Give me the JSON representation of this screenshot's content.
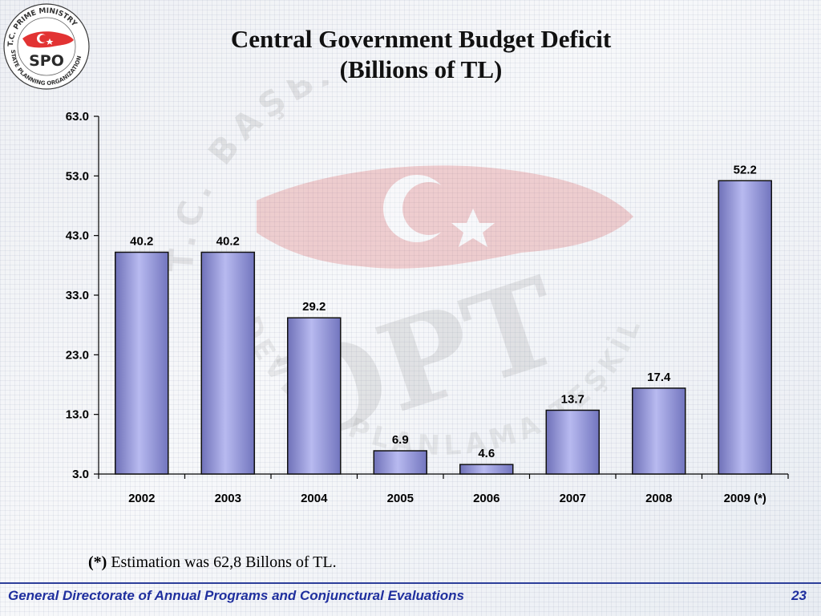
{
  "slide": {
    "title_line1": "Central Government Budget Deficit",
    "title_line2": "(Billions of  TL)",
    "footnote_mark": "(*)",
    "footnote_text": " Estimation was 62,8 Billons of  TL.",
    "footer_text": "General Directorate of Annual Programs and Conjunctural Evaluations",
    "page_number": "23"
  },
  "logo": {
    "arc_top_text": "T.C. PRIME MINISTRY",
    "arc_bottom_text": "STATE PLANNING ORGANIZATION",
    "center_text": "SPO"
  },
  "watermark": {
    "arc_text": "T.C. BAŞBAKANLIK",
    "center_text": "DPT",
    "lower_arc_text": "DEVLET PLANLAMA TEŞKİLATI"
  },
  "colors": {
    "bar_fill": "#a9abe8",
    "bar_stroke": "#111111",
    "footer_text": "#1f2f9e",
    "footer_rule": "#2d3f9a",
    "watermark_red": "#d23a3a"
  },
  "chart_data": {
    "type": "bar",
    "categories": [
      "2002",
      "2003",
      "2004",
      "2005",
      "2006",
      "2007",
      "2008",
      "2009 (*)"
    ],
    "values": [
      40.2,
      40.2,
      29.2,
      6.9,
      4.6,
      13.7,
      17.4,
      52.2
    ],
    "value_labels": [
      "40.2",
      "40.2",
      "29.2",
      "6.9",
      "4.6",
      "13.7",
      "17.4",
      "52.2"
    ],
    "y_ticks": [
      3.0,
      13.0,
      23.0,
      33.0,
      43.0,
      53.0,
      63.0
    ],
    "y_tick_labels": [
      "3.0",
      "13.0",
      "23.0",
      "33.0",
      "43.0",
      "53.0",
      "63.0"
    ],
    "ylim": [
      3.0,
      63.0
    ],
    "title": "Central Government Budget Deficit (Billions of TL)",
    "xlabel": "",
    "ylabel": "",
    "grid": false,
    "legend": "none"
  }
}
